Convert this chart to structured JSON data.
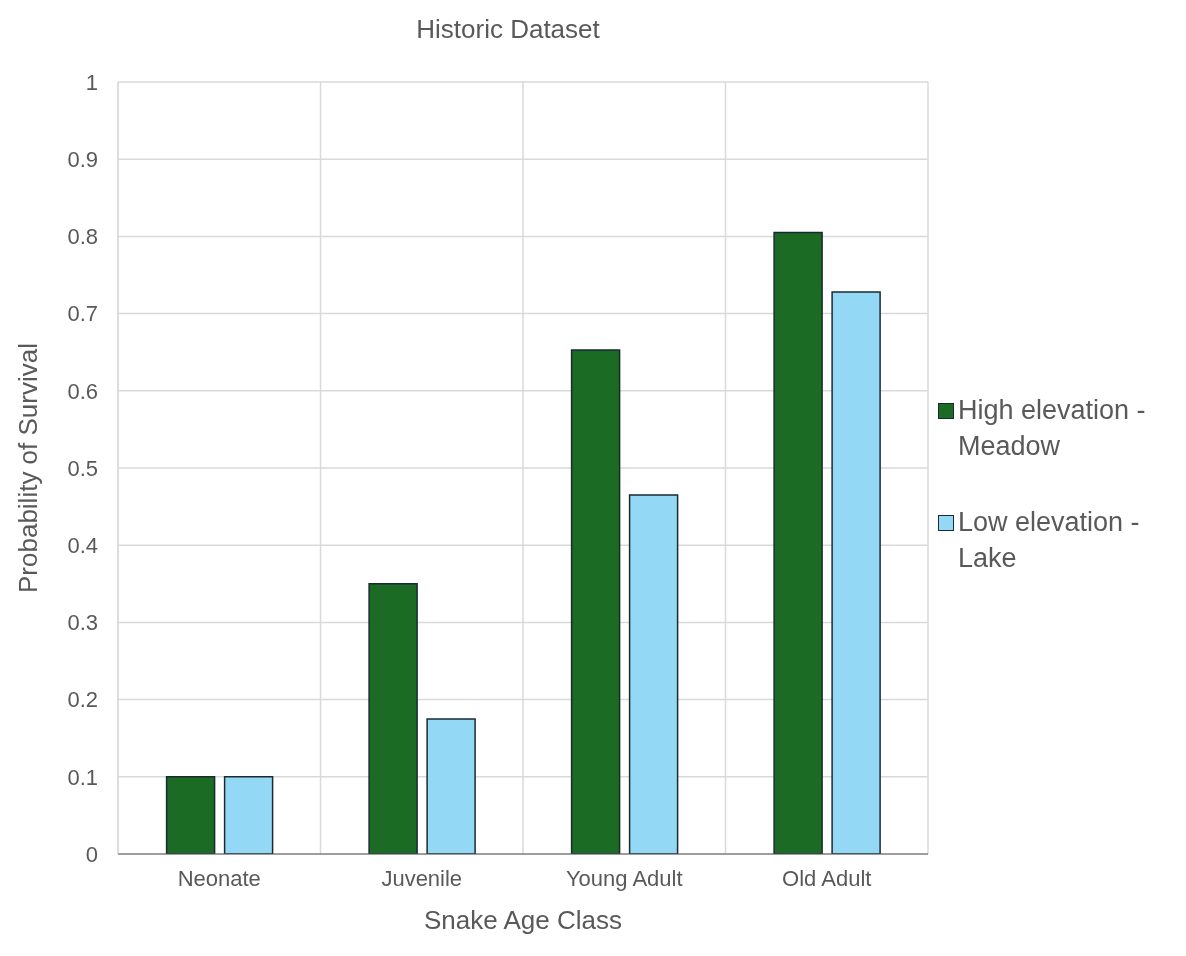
{
  "chart_data": {
    "type": "bar",
    "title": "Historic Dataset",
    "xlabel": "Snake Age Class",
    "ylabel": "Probability of Survival",
    "categories": [
      "Neonate",
      "Juvenile",
      "Young Adult",
      "Old Adult"
    ],
    "series": [
      {
        "name": "High elevation - Meadow",
        "color": "#1b6b25",
        "values": [
          0.1,
          0.35,
          0.653,
          0.805
        ]
      },
      {
        "name": "Low elevation - Lake",
        "color": "#93d8f5",
        "values": [
          0.1,
          0.175,
          0.465,
          0.728
        ]
      }
    ],
    "ylim": [
      0,
      1
    ],
    "yticks": [
      0,
      0.1,
      0.2,
      0.3,
      0.4,
      0.5,
      0.6,
      0.7,
      0.8,
      0.9,
      1
    ],
    "grid": true,
    "legend": "right"
  }
}
